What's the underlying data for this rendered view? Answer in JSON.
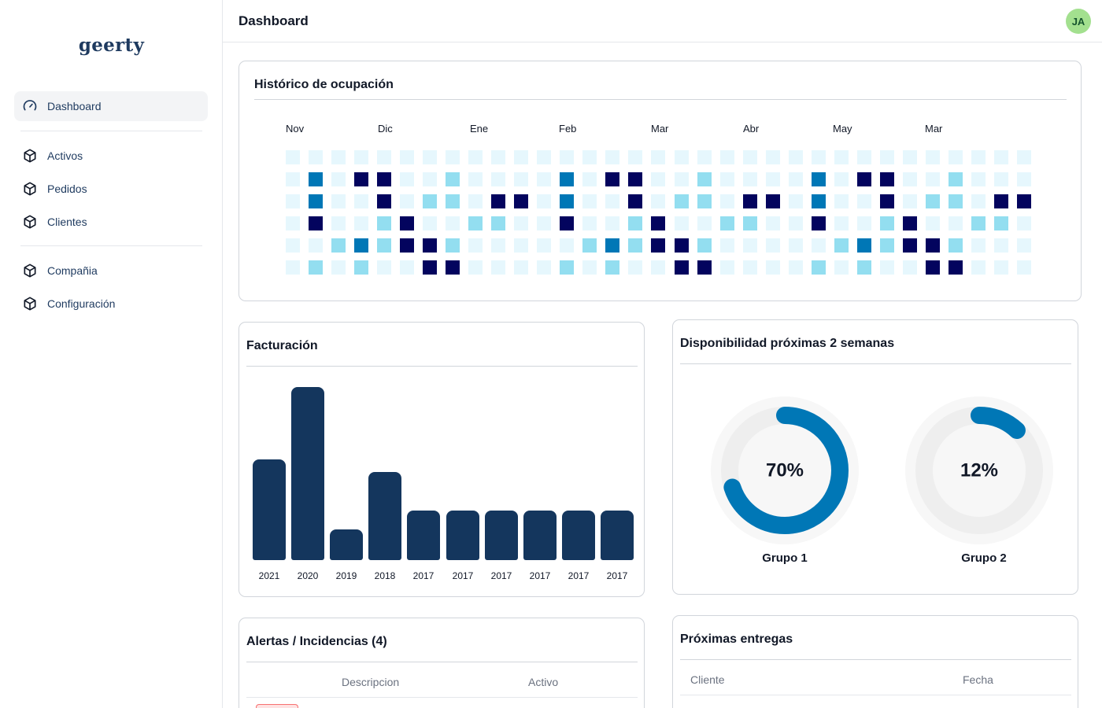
{
  "app": {
    "logo": "geerty"
  },
  "sidebar": {
    "items": [
      {
        "label": "Dashboard",
        "icon": "gauge-icon",
        "active": true
      },
      {
        "label": "Activos",
        "icon": "cube-icon"
      },
      {
        "label": "Pedidos",
        "icon": "cube-icon"
      },
      {
        "label": "Clientes",
        "icon": "cube-icon"
      },
      {
        "label": "Compañia",
        "icon": "cube-icon"
      },
      {
        "label": "Configuración",
        "icon": "cube-icon"
      }
    ]
  },
  "header": {
    "title": "Dashboard",
    "avatar_initials": "JA"
  },
  "occupancy": {
    "title": "Histórico de ocupación",
    "months": [
      "Nov",
      "Dic",
      "Ene",
      "Feb",
      "Mar",
      "Abr",
      "May",
      "Mar"
    ],
    "levels": [
      [
        0,
        0,
        0,
        0,
        0,
        0,
        0,
        0,
        0,
        0,
        0,
        0,
        0,
        0,
        0,
        0,
        0,
        0,
        0,
        0,
        0,
        0,
        0,
        0,
        0,
        0,
        0,
        0,
        0,
        0,
        0,
        0,
        0
      ],
      [
        0,
        2,
        0,
        3,
        3,
        0,
        0,
        1,
        0,
        0,
        0,
        0,
        2,
        0,
        3,
        3,
        0,
        0,
        1,
        0,
        0,
        0,
        0,
        2,
        0,
        3,
        3,
        0,
        0,
        1,
        0,
        0,
        0
      ],
      [
        0,
        2,
        0,
        0,
        3,
        0,
        1,
        1,
        0,
        3,
        3,
        0,
        2,
        0,
        0,
        3,
        0,
        1,
        1,
        0,
        3,
        3,
        0,
        2,
        0,
        0,
        3,
        0,
        1,
        1,
        0,
        3,
        3
      ],
      [
        0,
        3,
        0,
        0,
        1,
        3,
        0,
        0,
        1,
        1,
        0,
        0,
        3,
        0,
        0,
        1,
        3,
        0,
        0,
        1,
        1,
        0,
        0,
        3,
        0,
        0,
        1,
        3,
        0,
        0,
        1,
        1,
        0
      ],
      [
        0,
        0,
        1,
        2,
        1,
        3,
        3,
        1,
        0,
        0,
        0,
        0,
        0,
        1,
        2,
        1,
        3,
        3,
        1,
        0,
        0,
        0,
        0,
        0,
        1,
        2,
        1,
        3,
        3,
        1,
        0,
        0,
        0
      ],
      [
        0,
        1,
        0,
        1,
        0,
        0,
        3,
        3,
        0,
        0,
        0,
        0,
        1,
        0,
        1,
        0,
        0,
        3,
        3,
        0,
        0,
        0,
        0,
        1,
        0,
        1,
        0,
        0,
        3,
        3,
        0,
        0,
        0
      ]
    ],
    "level_colors": [
      "#e6f7fd",
      "#93def0",
      "#0077b6",
      "#03045e"
    ]
  },
  "billing": {
    "title": "Facturación",
    "bar_color": "#14365d"
  },
  "availability": {
    "title": "Disponibilidad próximas 2 semanas",
    "groups": [
      {
        "name": "Grupo 1",
        "label": "70%",
        "value": 0.7
      },
      {
        "name": "Grupo 2",
        "label": "12%",
        "value": 0.12
      }
    ],
    "ring_color": "#0077b6",
    "track_color": "#eeeeee"
  },
  "alerts": {
    "title": "Alertas / Incidencias (4)",
    "columns": [
      "Descripcion",
      "Activo"
    ]
  },
  "deliveries": {
    "title": "Próximas entregas",
    "columns": [
      "Cliente",
      "Fecha"
    ]
  },
  "chart_data": {
    "type": "bar",
    "categories": [
      "2021",
      "2020",
      "2019",
      "2018",
      "2017",
      "2017",
      "2017",
      "2017",
      "2017",
      "2017"
    ],
    "values": [
      128,
      220,
      39,
      112,
      63,
      63,
      63,
      63,
      63,
      63
    ],
    "ylim": [
      0,
      220
    ],
    "grid": false,
    "legend": "none"
  }
}
